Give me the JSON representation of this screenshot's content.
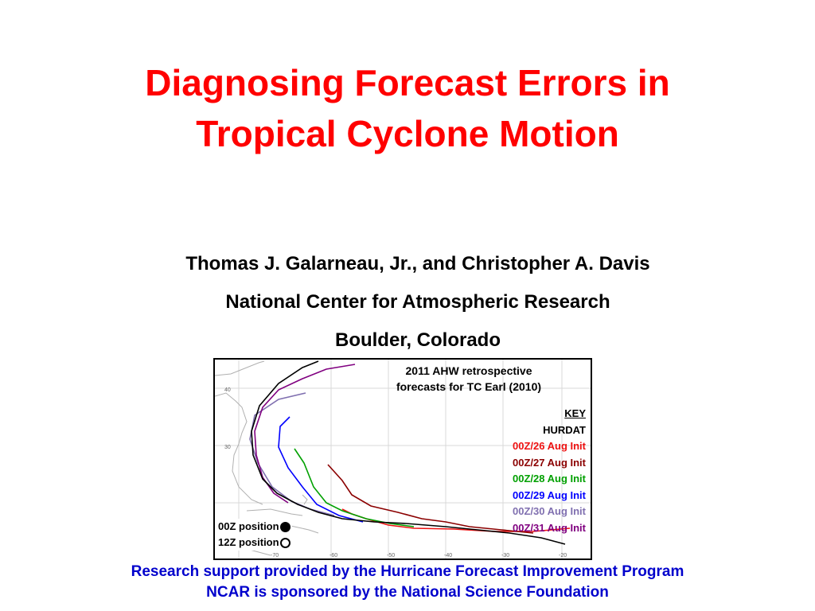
{
  "slide": {
    "title_line1": "Diagnosing Forecast Errors in",
    "title_line2": "Tropical Cyclone Motion",
    "authors": "Thomas J. Galarneau, Jr., and Christopher A. Davis",
    "institution": "National Center for Atmospheric Research",
    "location": "Boulder, Colorado",
    "footer_line1": "Research support provided by the Hurricane Forecast Improvement Program",
    "footer_line2": "NCAR is sponsored by the National Science Foundation",
    "title_color": "#ff0000",
    "footer_color": "#0000cc"
  },
  "figure": {
    "title_line1": "2011 AHW retrospective",
    "title_line2": "forecasts for TC Earl (2010)",
    "key_heading": "KEY",
    "key_items": [
      {
        "label": "HURDAT",
        "color": "#000000"
      },
      {
        "label": "00Z/26 Aug Init",
        "color": "#ee1111"
      },
      {
        "label": "00Z/27 Aug Init",
        "color": "#8b0000"
      },
      {
        "label": "00Z/28 Aug Init",
        "color": "#00a000"
      },
      {
        "label": "00Z/29 Aug Init",
        "color": "#0000ff"
      },
      {
        "label": "00Z/30 Aug Init",
        "color": "#8070b0"
      },
      {
        "label": "00Z/31 Aug Init",
        "color": "#800080"
      }
    ],
    "position_legend": {
      "filled_label": "00Z position",
      "open_label": "12Z position"
    },
    "lon_ticks": [
      "-70",
      "-60",
      "-50",
      "-40",
      "-30",
      "-20"
    ],
    "lat_ticks": [
      "40",
      "30"
    ]
  }
}
